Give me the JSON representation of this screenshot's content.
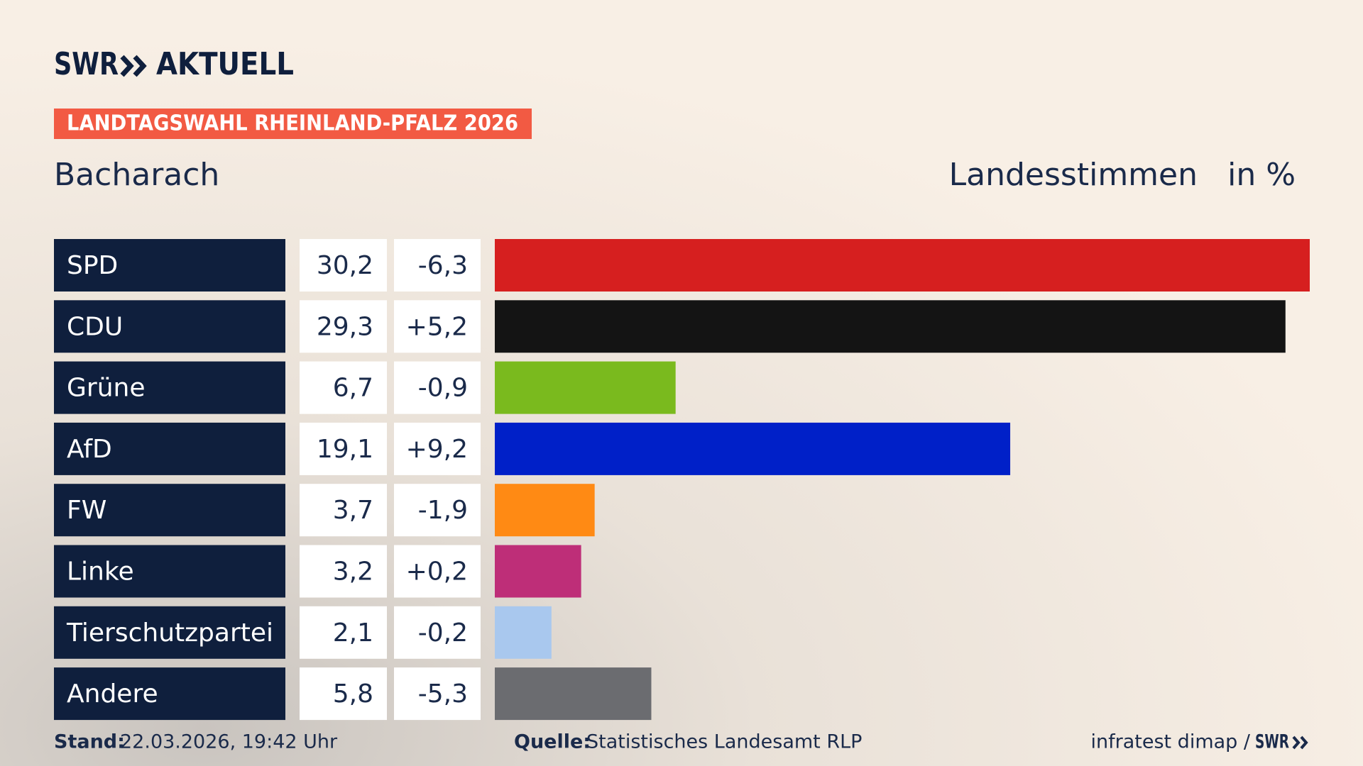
{
  "chart_data": {
    "type": "bar",
    "brand": "SWR",
    "brand_section": "AKTUELL",
    "banner": "LANDTAGSWAHL RHEINLAND-PFALZ 2026",
    "title": "Bacharach",
    "measure": "Landesstimmen",
    "unit": "in %",
    "categories": [
      "SPD",
      "CDU",
      "Grüne",
      "AfD",
      "FW",
      "Linke",
      "Tierschutzpartei",
      "Andere"
    ],
    "values": [
      30.2,
      29.3,
      6.7,
      19.1,
      3.7,
      3.2,
      2.1,
      5.8
    ],
    "value_labels": [
      "30,2",
      "29,3",
      "6,7",
      "19,1",
      "3,7",
      "3,2",
      "2,1",
      "5,8"
    ],
    "changes": [
      -6.3,
      5.2,
      -0.9,
      9.2,
      -1.9,
      0.2,
      -0.2,
      -5.3
    ],
    "change_labels": [
      "-6,3",
      "+5,2",
      "-0,9",
      "+9,2",
      "-1,9",
      "+0,2",
      "-0,2",
      "-5,3"
    ],
    "colors": [
      "#d61f1f",
      "#141414",
      "#7aba1e",
      "#0020c8",
      "#ff8a14",
      "#be2e78",
      "#a9c8ee",
      "#6b6c70"
    ],
    "stand_label": "Stand:",
    "stand": "22.03.2026, 19:42 Uhr",
    "source_label": "Quelle:",
    "source": "Statistisches Landesamt RLP",
    "credit": "infratest dimap /",
    "credit_brand": "SWR"
  }
}
